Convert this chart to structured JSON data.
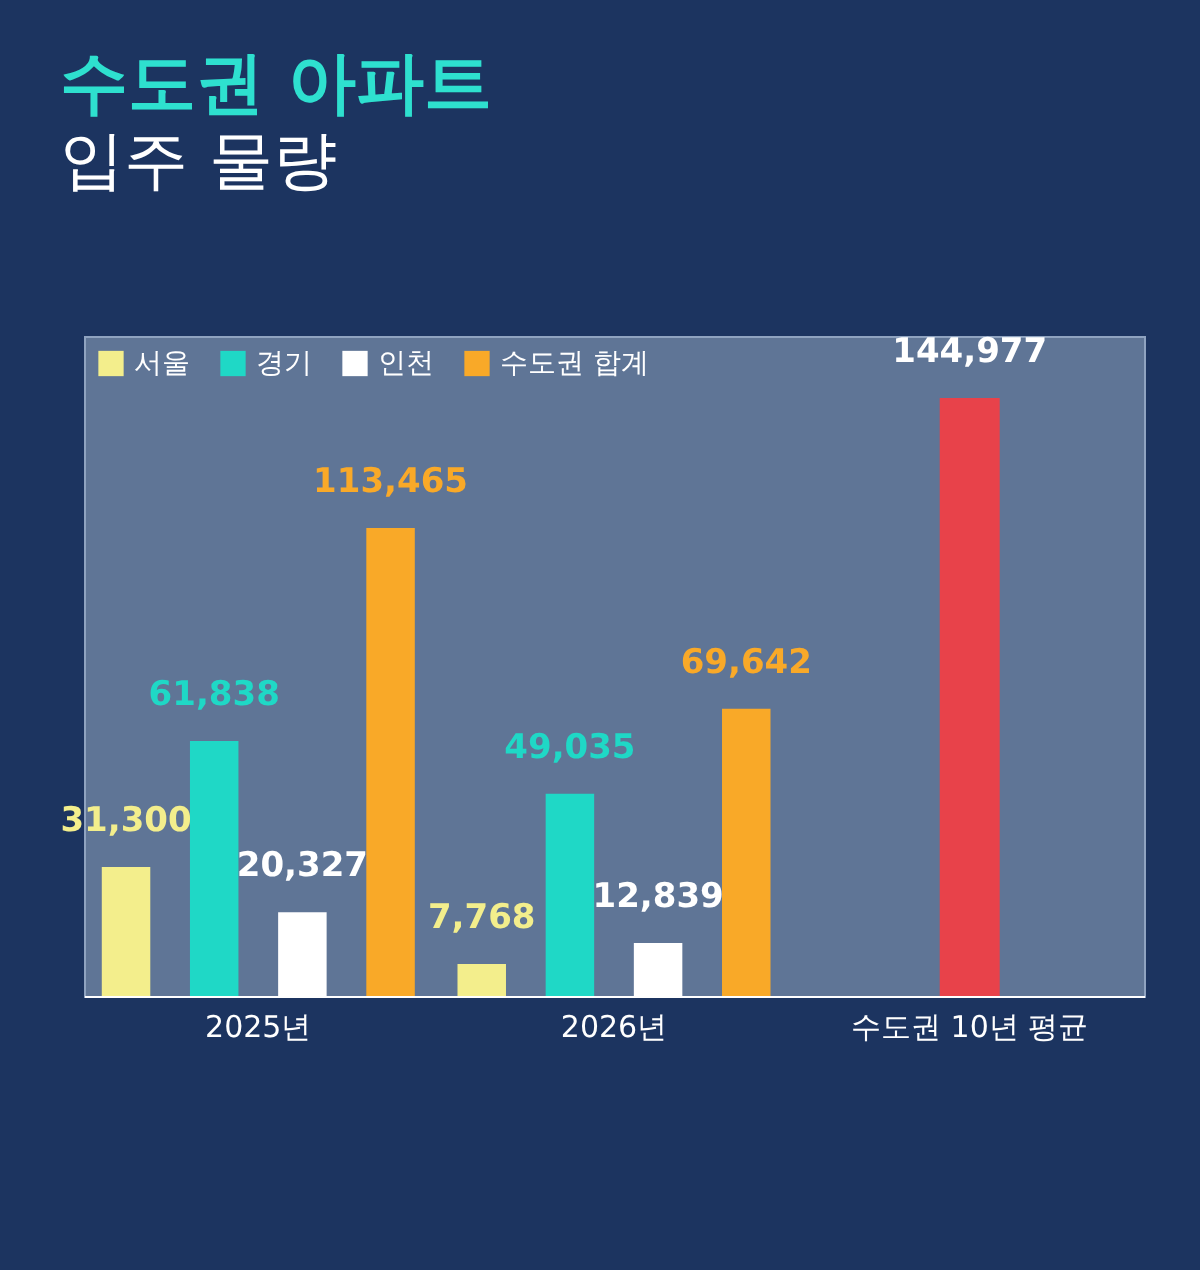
{
  "chart_data": {
    "type": "bar",
    "title": "수도권 아파트",
    "subtitle": "입주 물량",
    "categories": [
      "2025년",
      "2026년",
      "수도권 10년 평균"
    ],
    "series": [
      {
        "name": "서울",
        "color": "#f3ee8c",
        "values": [
          31300,
          7768,
          null
        ],
        "value_labels": [
          "31,300",
          "7,768",
          null
        ]
      },
      {
        "name": "경기",
        "color": "#1fd8c6",
        "values": [
          61838,
          49035,
          null
        ],
        "value_labels": [
          "61,838",
          "49,035",
          null
        ]
      },
      {
        "name": "인천",
        "color": "#ffffff",
        "values": [
          20327,
          12839,
          null
        ],
        "value_labels": [
          "20,327",
          "12,839",
          null
        ]
      },
      {
        "name": "수도권 합계",
        "color": "#f9a928",
        "values": [
          113465,
          69642,
          null
        ],
        "value_labels": [
          "113,465",
          "69,642",
          null
        ]
      },
      {
        "color": "#e8424a",
        "values": [
          null,
          null,
          144977
        ],
        "value_labels": [
          null,
          null,
          "144,977"
        ]
      }
    ],
    "legend": "top left"
  }
}
